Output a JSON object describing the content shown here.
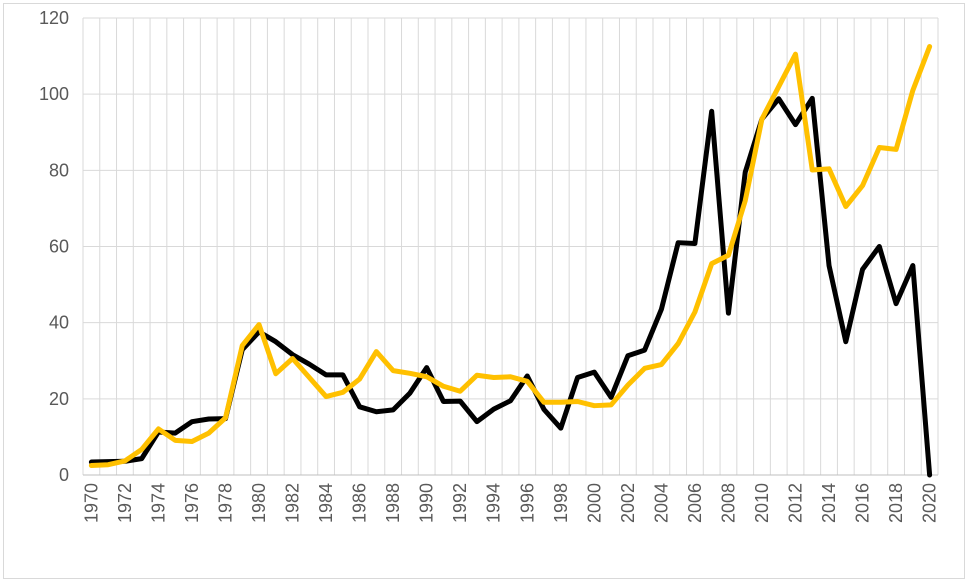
{
  "chart_data": {
    "type": "line",
    "title": "",
    "xlabel": "",
    "ylabel": "",
    "ylim": [
      0,
      120
    ],
    "yticks": [
      0,
      20,
      40,
      60,
      80,
      100,
      120
    ],
    "x": [
      1970,
      1971,
      1972,
      1973,
      1974,
      1975,
      1976,
      1977,
      1978,
      1979,
      1980,
      1981,
      1982,
      1983,
      1984,
      1985,
      1986,
      1987,
      1988,
      1989,
      1990,
      1991,
      1992,
      1993,
      1994,
      1995,
      1996,
      1997,
      1998,
      1999,
      2000,
      2001,
      2002,
      2003,
      2004,
      2005,
      2006,
      2007,
      2008,
      2009,
      2010,
      2011,
      2012,
      2013,
      2014,
      2015,
      2016,
      2017,
      2018,
      2019,
      2020
    ],
    "xtick_labels": [
      "1970",
      "1972",
      "1974",
      "1976",
      "1978",
      "1980",
      "1982",
      "1984",
      "1986",
      "1988",
      "1990",
      "1992",
      "1994",
      "1996",
      "1998",
      "2000",
      "2002",
      "2004",
      "2006",
      "2008",
      "2010",
      "2012",
      "2014",
      "2016",
      "2018",
      "2020"
    ],
    "grid": true,
    "legend": "none",
    "series": [
      {
        "color": "#000000",
        "values": [
          3.4,
          3.5,
          3.6,
          4.3,
          11.3,
          11.0,
          14.0,
          14.7,
          14.8,
          32.9,
          37.6,
          35.0,
          31.6,
          29.1,
          26.3,
          26.3,
          17.9,
          16.6,
          17.1,
          21.5,
          28.2,
          19.3,
          19.4,
          14.0,
          17.3,
          19.5,
          26.0,
          17.2,
          12.3,
          25.6,
          27.0,
          20.4,
          31.3,
          32.8,
          43.5,
          61.0,
          60.8,
          95.5,
          42.5,
          79.5,
          93.5,
          98.8,
          92.0,
          98.9,
          55.0,
          35.0,
          54.0,
          60.0,
          45.0,
          55.0,
          0.0
        ]
      },
      {
        "color": "#ffc000",
        "values": [
          2.5,
          2.7,
          3.7,
          6.7,
          12.1,
          9.1,
          8.8,
          11.0,
          15.0,
          34.0,
          39.5,
          26.6,
          30.6,
          25.6,
          20.6,
          21.7,
          25.2,
          32.4,
          27.4,
          26.7,
          25.8,
          23.3,
          22.0,
          26.2,
          25.6,
          25.8,
          24.6,
          19.1,
          19.1,
          19.3,
          18.2,
          18.4,
          23.6,
          28.0,
          29.0,
          34.5,
          42.8,
          55.5,
          57.7,
          72.0,
          93.5,
          102.0,
          110.5,
          80.1,
          80.4,
          70.5,
          76.0,
          86.0,
          85.5,
          101.0,
          112.5
        ]
      }
    ]
  }
}
